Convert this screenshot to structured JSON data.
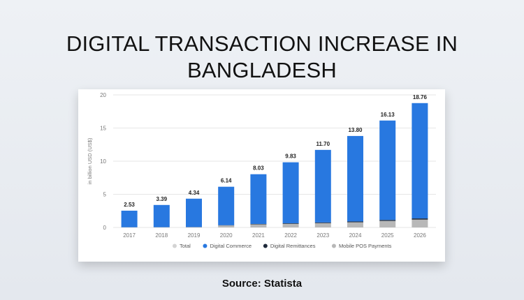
{
  "title": "DIGITAL TRANSACTION INCREASE IN BANGLADESH",
  "title_lines": [
    "DIGITAL TRANSACTION INCREASE IN",
    "BANGLADESH"
  ],
  "source": "Source: Statista",
  "colors": {
    "digital_commerce": "#2878e0",
    "digital_remittances": "#1f2a3a",
    "mobile_pos": "#b8b8b8",
    "total": "#d4d4d4"
  },
  "chart_data": {
    "type": "bar",
    "stacked": true,
    "categories": [
      "2017",
      "2018",
      "2019",
      "2020",
      "2021",
      "2022",
      "2023",
      "2024",
      "2025",
      "2026"
    ],
    "totals": [
      2.53,
      3.39,
      4.34,
      6.14,
      8.03,
      9.83,
      11.7,
      13.8,
      16.13,
      18.76
    ],
    "total_labels": [
      "2.53",
      "3.39",
      "4.34",
      "6.14",
      "8.03",
      "9.83",
      "11.70",
      "13.80",
      "16.13",
      "18.76"
    ],
    "series": [
      {
        "name": "Digital Commerce",
        "values": [
          2.5,
          3.35,
          4.28,
          5.8,
          7.5,
          9.2,
          10.95,
          12.9,
          15.0,
          17.4
        ]
      },
      {
        "name": "Digital Remittances",
        "values": [
          0.01,
          0.01,
          0.02,
          0.04,
          0.06,
          0.08,
          0.1,
          0.12,
          0.15,
          0.18
        ]
      },
      {
        "name": "Mobile POS Payments",
        "values": [
          0.02,
          0.03,
          0.04,
          0.3,
          0.47,
          0.55,
          0.65,
          0.78,
          0.98,
          1.18
        ]
      }
    ],
    "legend": [
      "Total",
      "Digital Commerce",
      "Digital Remittances",
      "Mobile POS Payments"
    ],
    "legend_position": "bottom",
    "ylabel": "in billion USD (US$)",
    "xlabel": "",
    "ylim": [
      0,
      20
    ],
    "yticks": [
      0,
      5,
      10,
      15,
      20
    ],
    "grid": true
  }
}
